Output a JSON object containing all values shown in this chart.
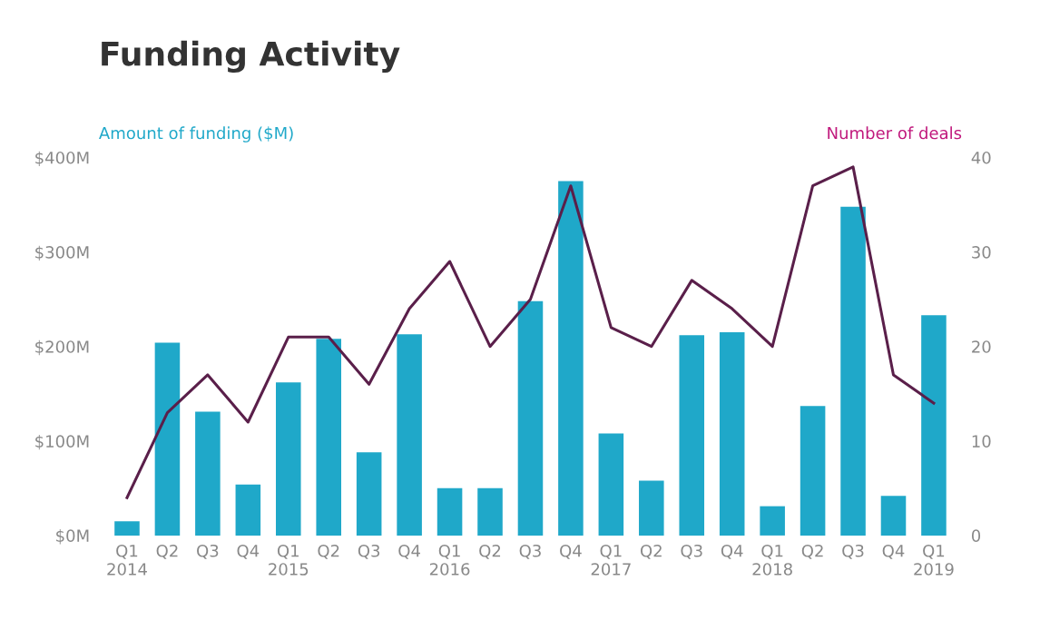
{
  "chart_data": {
    "type": "bar",
    "title": "Funding Activity",
    "ylabel": "Amount of funding ($M)",
    "y2label": "Number of deals",
    "categories": [
      "Q1\n2014",
      "Q2",
      "Q3",
      "Q4",
      "Q1\n2015",
      "Q2",
      "Q3",
      "Q4",
      "Q1\n2016",
      "Q2",
      "Q3",
      "Q4",
      "Q1\n2017",
      "Q2",
      "Q3",
      "Q4",
      "Q1\n2018",
      "Q2",
      "Q3",
      "Q4",
      "Q1\n2019"
    ],
    "series": [
      {
        "color": "#1fa8c9",
        "values": [
          15,
          204,
          131,
          54,
          162,
          208,
          88,
          213,
          50,
          50,
          248,
          375,
          108,
          58,
          212,
          215,
          31,
          137,
          348,
          42,
          233
        ]
      },
      {
        "type": "line",
        "axis": "y2",
        "color": "#5a1f4a",
        "values": [
          4,
          13,
          17,
          12,
          21,
          21,
          16,
          24,
          29,
          20,
          25,
          37,
          22,
          20,
          27,
          24,
          20,
          37,
          39,
          17,
          14
        ]
      }
    ],
    "ylim": [
      0,
      400
    ],
    "yticks": [
      {
        "value": 0,
        "label": "$0M"
      },
      {
        "value": 100,
        "label": "$100M"
      },
      {
        "value": 200,
        "label": "$200M"
      },
      {
        "value": 300,
        "label": "$300M"
      },
      {
        "value": 400,
        "label": "$400M"
      }
    ],
    "y2lim": [
      0,
      40
    ],
    "y2ticks": [
      0,
      10,
      20,
      30,
      40
    ],
    "grid": false,
    "legend": false,
    "marker": "none",
    "line_style": "solid"
  }
}
